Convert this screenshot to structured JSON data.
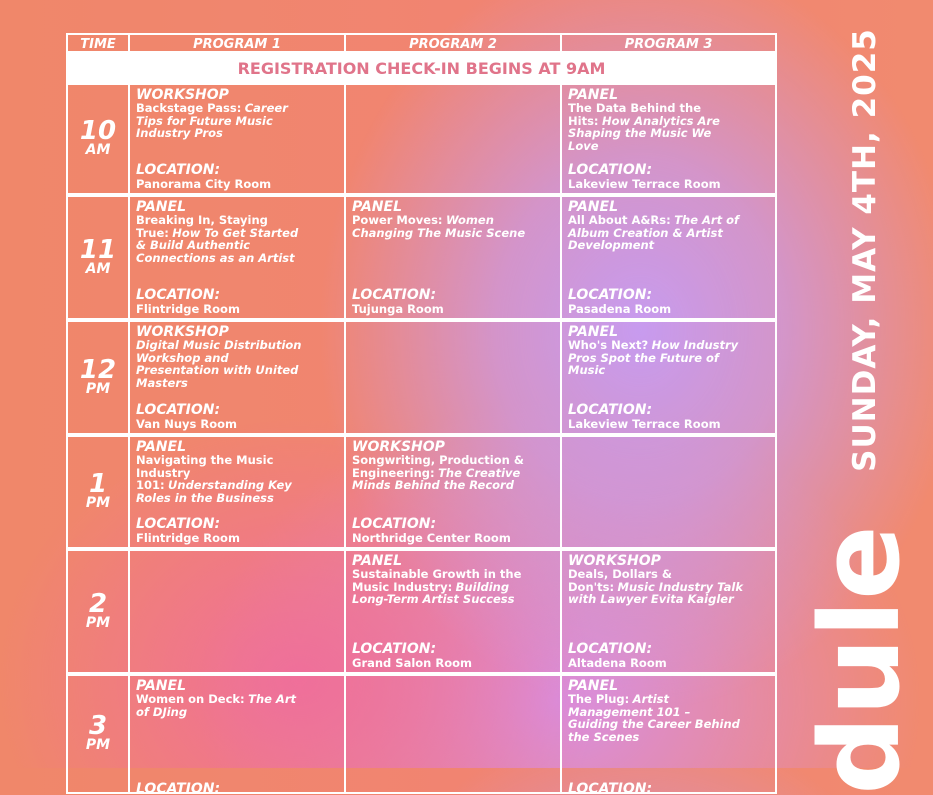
{
  "header": {
    "columns": [
      "TIME",
      "PROGRAM 1",
      "PROGRAM 2",
      "PROGRAM 3"
    ],
    "banner": "REGISTRATION CHECK-IN BEGINS AT 9AM"
  },
  "side": {
    "date": "SUNDAY, MAY 4TH, 2025",
    "word": "dule"
  },
  "rows": [
    {
      "time": "10",
      "period": "AM",
      "cells": [
        {
          "type": "WORKSHOP",
          "title": "Backstage Pass:",
          "subtitle": "Career Tips for Future Music Industry Pros",
          "location_label": "LOCATION:",
          "room": "Panorama City Room"
        },
        null,
        {
          "type": "PANEL",
          "title": "The Data Behind the Hits:",
          "subtitle": "How Analytics Are Shaping the Music We Love",
          "location_label": "LOCATION:",
          "room": "Lakeview Terrace Room"
        }
      ]
    },
    {
      "time": "11",
      "period": "AM",
      "cells": [
        {
          "type": "PANEL",
          "title": "Breaking In, Staying True:",
          "subtitle": "How To Get Started & Build Authentic Connections as an Artist",
          "location_label": "LOCATION:",
          "room": "Flintridge Room"
        },
        {
          "type": "PANEL",
          "title": "Power Moves:",
          "subtitle": "Women Changing The Music Scene",
          "location_label": "LOCATION:",
          "room": "Tujunga Room"
        },
        {
          "type": "PANEL",
          "title": "All About A&Rs:",
          "subtitle": "The Art of Album Creation & Artist Development",
          "location_label": "LOCATION:",
          "room": "Pasadena Room"
        }
      ]
    },
    {
      "time": "12",
      "period": "PM",
      "cells": [
        {
          "type": "WORKSHOP",
          "subtitle": "Digital Music Distribution Workshop and Presentation with United Masters",
          "location_label": "LOCATION:",
          "room": "Van Nuys Room"
        },
        null,
        {
          "type": "PANEL",
          "title": "Who's Next?",
          "subtitle": "How Industry Pros Spot the Future of Music",
          "location_label": "LOCATION:",
          "room": "Lakeview Terrace Room"
        }
      ]
    },
    {
      "time": "1",
      "period": "PM",
      "cells": [
        {
          "type": "PANEL",
          "title": "Navigating the Music Industry 101:",
          "subtitle": "Understanding Key Roles in the Business",
          "location_label": "LOCATION:",
          "room": "Flintridge Room"
        },
        {
          "type": "WORKSHOP",
          "title": "Songwriting, Production & Engineering:",
          "subtitle": "The Creative Minds Behind the Record",
          "location_label": "LOCATION:",
          "room": "Northridge Center Room"
        },
        null
      ]
    },
    {
      "time": "2",
      "period": "PM",
      "cells": [
        null,
        {
          "type": "PANEL",
          "title": "Sustainable Growth in the Music Industry:",
          "subtitle": "Building Long-Term Artist Success",
          "location_label": "LOCATION:",
          "room": "Grand Salon Room"
        },
        {
          "type": "WORKSHOP",
          "title": "Deals, Dollars & Don'ts:",
          "subtitle": "Music Industry Talk with Lawyer Evita Kaigler",
          "location_label": "LOCATION:",
          "room": "Altadena Room"
        }
      ]
    },
    {
      "time": "3",
      "period": "PM",
      "cells": [
        {
          "type": "PANEL",
          "title": "Women on Deck:",
          "subtitle": "The Art of DJing",
          "location_label": "LOCATION:"
        },
        null,
        {
          "type": "PANEL",
          "title": "The Plug:",
          "subtitle": "Artist Management 101 – Guiding the Career Behind the Scenes",
          "location_label": "LOCATION:"
        }
      ]
    }
  ]
}
